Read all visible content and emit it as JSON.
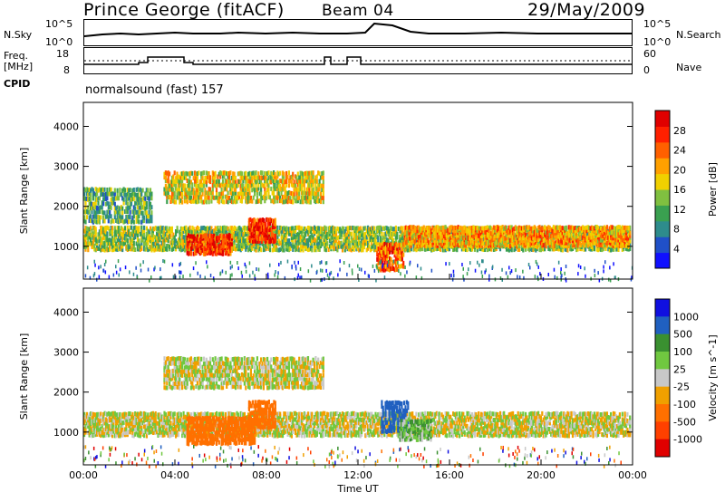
{
  "header": {
    "station": "Prince George (fitACF)",
    "beam": "Beam 04",
    "date": "29/May/2009"
  },
  "small_panels": {
    "nsky_label": "N.Sky",
    "nsearch_label": "N.Search",
    "freq_label_line1": "Freq.",
    "freq_label_line2": "[MHz]",
    "nave_label": "Nave",
    "cpid_label": "CPID",
    "cpid_value": "normalsound (fast) 157",
    "left_ticks_top": [
      "10^5",
      "10^0"
    ],
    "right_ticks_top": [
      "10^5",
      "10^0"
    ],
    "left_ticks_freq": [
      "18",
      "8"
    ],
    "right_ticks_nave": [
      "60",
      "0"
    ]
  },
  "chart_data": [
    {
      "type": "heatmap",
      "title": "",
      "xlabel": "Time UT",
      "ylabel": "Slant Range [km]",
      "x_ticks": [
        "00:00",
        "04:00",
        "08:00",
        "12:00",
        "16:00",
        "20:00",
        "00:00"
      ],
      "xlim_hours": [
        0,
        24
      ],
      "y_ticks": [
        1000,
        2000,
        3000,
        4000
      ],
      "ylim": [
        180,
        4600
      ],
      "colorbar": {
        "label": "Power [dB]",
        "ticks": [
          4,
          8,
          12,
          16,
          20,
          24,
          28
        ],
        "colors": [
          "#1010ff",
          "#2050c8",
          "#2e8c8c",
          "#3aa050",
          "#80c040",
          "#f0d000",
          "#ffa000",
          "#ff6000",
          "#ff2000",
          "#e00000"
        ]
      },
      "clusters_hours_km": [
        {
          "t0": 0.0,
          "t1": 23.9,
          "r0": 900,
          "r1": 1500,
          "level": 4
        },
        {
          "t0": 0.0,
          "t1": 3.0,
          "r0": 1600,
          "r1": 2500,
          "level": 3
        },
        {
          "t0": 3.5,
          "t1": 10.5,
          "r0": 2100,
          "r1": 2900,
          "level": 5
        },
        {
          "t0": 4.5,
          "t1": 6.5,
          "r0": 800,
          "r1": 1300,
          "level": 8
        },
        {
          "t0": 7.2,
          "t1": 8.4,
          "r0": 1100,
          "r1": 1700,
          "level": 8
        },
        {
          "t0": 12.8,
          "t1": 14.0,
          "r0": 400,
          "r1": 1100,
          "level": 7
        },
        {
          "t0": 14.0,
          "t1": 23.9,
          "r0": 1000,
          "r1": 1500,
          "level": 6
        }
      ]
    },
    {
      "type": "heatmap",
      "title": "",
      "xlabel": "Time UT",
      "ylabel": "Slant Range [km]",
      "x_ticks": [
        "00:00",
        "04:00",
        "08:00",
        "12:00",
        "16:00",
        "20:00",
        "00:00"
      ],
      "xlim_hours": [
        0,
        24
      ],
      "y_ticks": [
        1000,
        2000,
        3000,
        4000
      ],
      "ylim": [
        180,
        4600
      ],
      "colorbar": {
        "label": "Velocity [m s^-1]",
        "ticks": [
          1000,
          500,
          100,
          25,
          -25,
          -100,
          -500,
          -1000
        ],
        "colors": [
          "#1010e0",
          "#2060c0",
          "#3a9030",
          "#70c840",
          "#c8c8c8",
          "#f0a000",
          "#ff7000",
          "#ff4000",
          "#e00000"
        ]
      },
      "clusters_hours_km": [
        {
          "t0": 0.0,
          "t1": 23.9,
          "r0": 900,
          "r1": 1500,
          "v": 0
        },
        {
          "t0": 3.5,
          "t1": 10.5,
          "r0": 2100,
          "r1": 2900,
          "v": 0
        },
        {
          "t0": 4.5,
          "t1": 7.5,
          "r0": 700,
          "r1": 1400,
          "v": -300
        },
        {
          "t0": 7.2,
          "t1": 8.4,
          "r0": 1100,
          "r1": 1800,
          "v": -400
        },
        {
          "t0": 13.0,
          "t1": 14.2,
          "r0": 1000,
          "r1": 1800,
          "v": 800
        },
        {
          "t0": 13.8,
          "t1": 15.2,
          "r0": 800,
          "r1": 1300,
          "v": 80
        }
      ]
    }
  ]
}
